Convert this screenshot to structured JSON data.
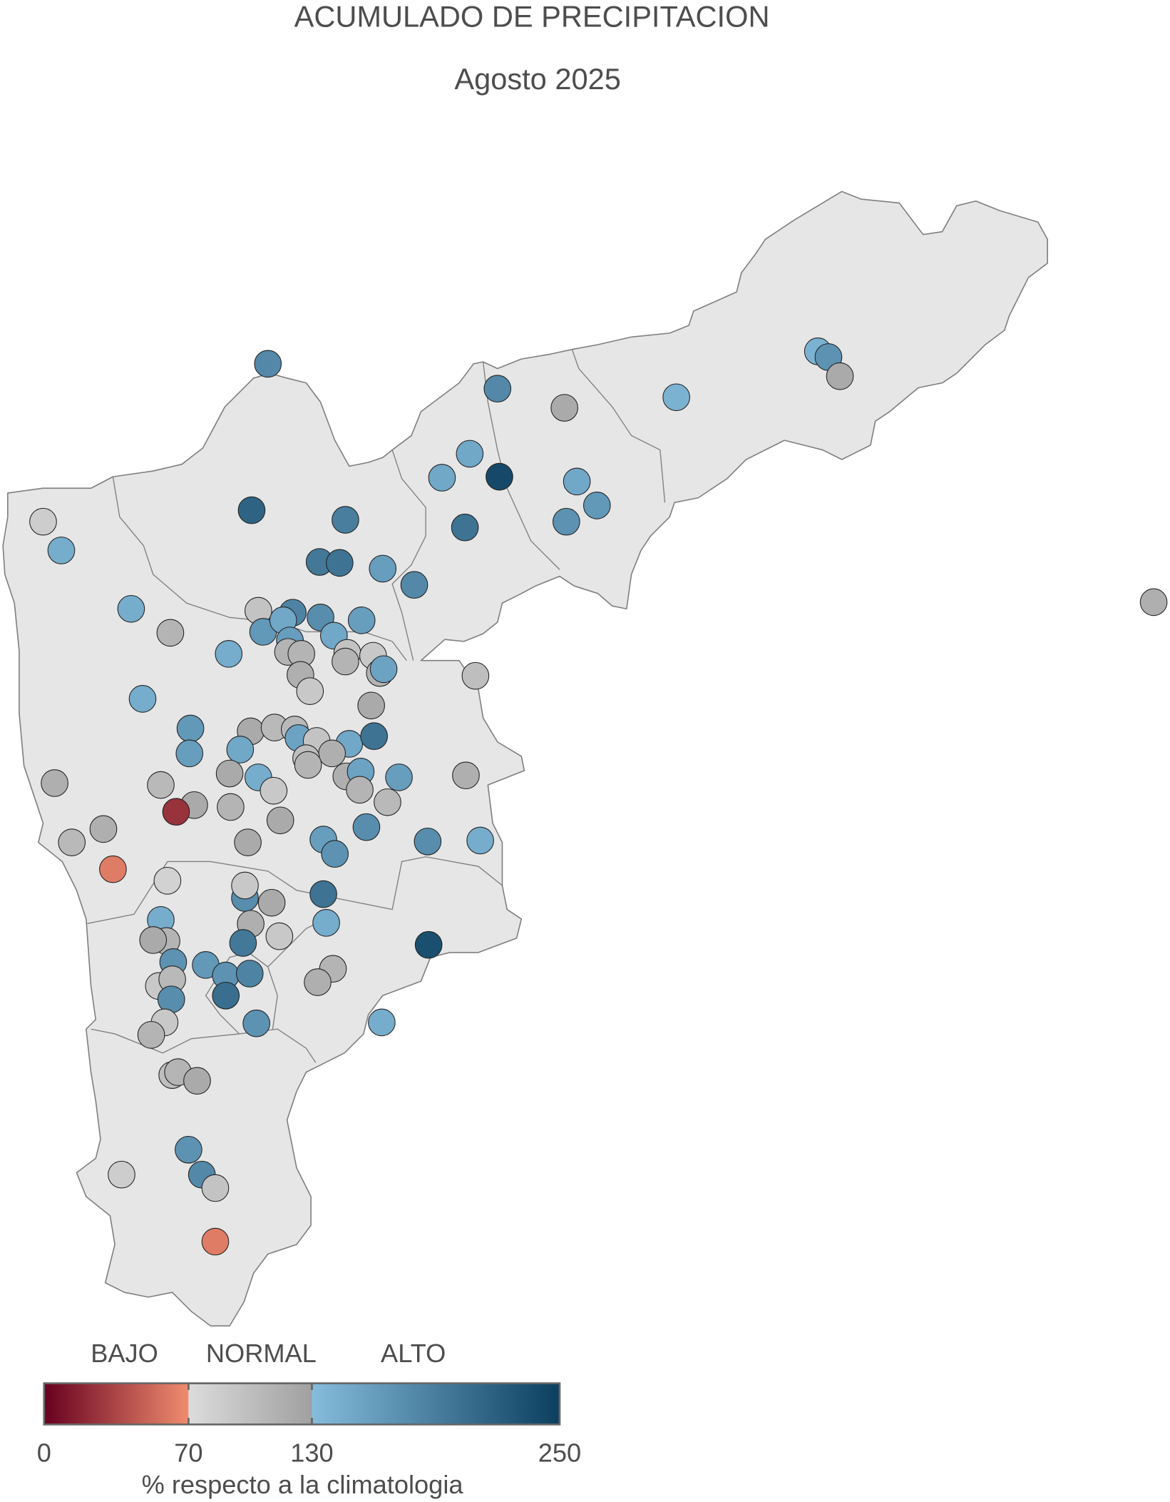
{
  "title": "ACUMULADO DE PRECIPITACION",
  "subtitle": "Agosto 2025",
  "legend": {
    "categories": [
      "BAJO",
      "NORMAL",
      "ALTO"
    ],
    "ticks": [
      "0",
      "70",
      "130",
      "250"
    ],
    "axis_title": "% respecto a la climatologia",
    "range": [
      0,
      250
    ],
    "breaks": [
      70,
      130
    ],
    "colors": {
      "bajo_start": "#67001f",
      "bajo_end": "#ef8c6e",
      "normal_start": "#dcdcdc",
      "normal_end": "#a0a0a0",
      "alto_start": "#85bcdc",
      "alto_end": "#0c3f5f"
    }
  },
  "map": {
    "fill": "#e6e6e6",
    "border": "#7f7f7f"
  },
  "stations_percent": [
    180,
    180,
    120,
    140,
    140,
    170,
    120,
    150,
    150,
    240,
    150,
    165,
    170,
    200,
    215,
    190,
    85,
    145,
    195,
    200,
    160,
    180,
    145,
    110,
    95,
    185,
    175,
    160,
    165,
    150,
    160,
    150,
    145,
    110,
    110,
    95,
    110,
    90,
    110,
    155,
    115,
    90,
    100,
    145,
    120,
    165,
    160,
    120,
    105,
    105,
    155,
    95,
    150,
    150,
    200,
    115,
    100,
    110,
    115,
    105,
    120,
    120,
    145,
    90,
    115,
    155,
    110,
    160,
    115,
    25,
    110,
    120,
    105,
    115,
    105,
    120,
    160,
    170,
    175,
    175,
    145,
    62,
    80,
    175,
    90,
    120,
    200,
    145,
    145,
    115,
    90,
    195,
    110,
    120,
    235,
    170,
    165,
    170,
    185,
    90,
    105,
    175,
    205,
    110,
    115,
    90,
    110,
    170,
    145,
    100,
    110,
    120,
    170,
    180,
    95,
    85,
    62,
    115
  ]
}
